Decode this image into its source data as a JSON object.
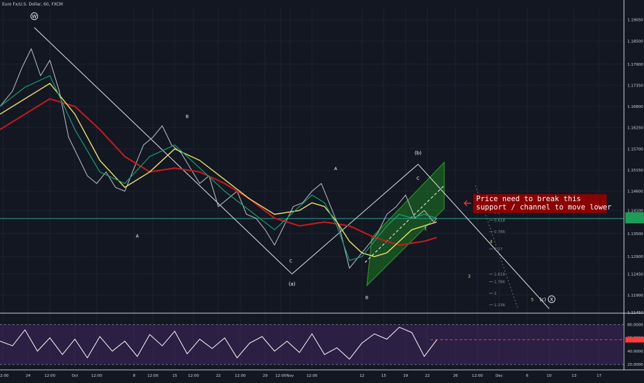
{
  "title": "Euro Fx/U.S. Dollar, 60, FXCM",
  "callout": {
    "line1": "Price need to break this",
    "line2": "support / channel to move lower"
  },
  "colors": {
    "background": "#131722",
    "grid": "#1e2230",
    "axis_text": "#d1d4dc",
    "ma_slow": "#c81b1b",
    "ma_mid": "#e8e36a",
    "ma_fast": "#1a9e6b",
    "candles": "#b2b5be",
    "channel": "#1e7a22",
    "wave_lines": "#e6e6e6",
    "support_line": "#26a69a",
    "rsi_line": "#ffffff",
    "rsi_band": "#5a2d82",
    "rsi_value": "#ff3b3b",
    "callout_bg": "#8b0000"
  },
  "chart_data": [
    {
      "type": "line",
      "title": "Euro Fx/U.S. Dollar, 60, FXCM",
      "x_ticks": [
        "12:00",
        "24",
        "12:00",
        "Oct",
        "12:00",
        "8",
        "12:00",
        "15",
        "12:00",
        "22",
        "12:00",
        "29",
        "12:00",
        "Nov",
        "12:00",
        "12",
        "15",
        "19",
        "22",
        "26",
        "12:00",
        "Dec",
        "6",
        "10",
        "13",
        "17"
      ],
      "x_tick_fraction": [
        0.005,
        0.045,
        0.08,
        0.12,
        0.155,
        0.215,
        0.245,
        0.28,
        0.31,
        0.35,
        0.385,
        0.425,
        0.45,
        0.465,
        0.5,
        0.58,
        0.615,
        0.65,
        0.685,
        0.73,
        0.765,
        0.8,
        0.845,
        0.88,
        0.92,
        0.96
      ],
      "y_ticks": [
        1.1145,
        1.119,
        1.1245,
        1.129,
        1.135,
        1.141,
        1.146,
        1.1515,
        1.157,
        1.1625,
        1.168,
        1.1735,
        1.179,
        1.185,
        1.1905
      ],
      "y_tick_labels": [
        "1.11450",
        "1.11900",
        "1.12450",
        "1.12900",
        "1.13500",
        "1.14100",
        "1.14600",
        "1.15150",
        "1.15700",
        "1.16250",
        "1.16800",
        "1.17350",
        "1.17900",
        "1.18500",
        "1.19050"
      ],
      "ylim": [
        1.1145,
        1.1935
      ],
      "current_price_label": "1.13891",
      "current_price_label2": "17:19",
      "current_price": 1.1389,
      "series": [
        {
          "role": "price",
          "x": [
            0.0,
            0.02,
            0.035,
            0.05,
            0.065,
            0.08,
            0.095,
            0.11,
            0.125,
            0.14,
            0.155,
            0.17,
            0.185,
            0.2,
            0.215,
            0.23,
            0.245,
            0.26,
            0.275,
            0.29,
            0.305,
            0.32,
            0.335,
            0.35,
            0.365,
            0.38,
            0.395,
            0.41,
            0.425,
            0.44,
            0.455,
            0.47,
            0.485,
            0.5,
            0.515,
            0.53,
            0.545,
            0.56,
            0.575,
            0.59,
            0.605,
            0.62,
            0.635,
            0.65,
            0.665,
            0.68,
            0.695,
            0.7
          ],
          "y": [
            1.168,
            1.172,
            1.178,
            1.183,
            1.176,
            1.18,
            1.172,
            1.16,
            1.155,
            1.15,
            1.148,
            1.151,
            1.147,
            1.146,
            1.152,
            1.158,
            1.16,
            1.163,
            1.158,
            1.156,
            1.152,
            1.148,
            1.15,
            1.142,
            1.144,
            1.146,
            1.14,
            1.139,
            1.136,
            1.132,
            1.137,
            1.142,
            1.143,
            1.146,
            1.148,
            1.142,
            1.136,
            1.126,
            1.129,
            1.132,
            1.135,
            1.14,
            1.142,
            1.145,
            1.139,
            1.141,
            1.138,
            1.139
          ]
        },
        {
          "role": "ma_slow",
          "x": [
            0.0,
            0.04,
            0.08,
            0.12,
            0.16,
            0.2,
            0.24,
            0.28,
            0.32,
            0.36,
            0.4,
            0.44,
            0.48,
            0.52,
            0.56,
            0.6,
            0.64,
            0.68,
            0.7
          ],
          "y": [
            1.162,
            1.166,
            1.17,
            1.168,
            1.162,
            1.155,
            1.151,
            1.152,
            1.151,
            1.148,
            1.144,
            1.139,
            1.137,
            1.138,
            1.137,
            1.134,
            1.132,
            1.133,
            1.134
          ]
        },
        {
          "role": "ma_mid",
          "x": [
            0.0,
            0.04,
            0.08,
            0.12,
            0.16,
            0.2,
            0.24,
            0.28,
            0.32,
            0.36,
            0.4,
            0.44,
            0.48,
            0.5,
            0.52,
            0.54,
            0.56,
            0.58,
            0.6,
            0.62,
            0.64,
            0.66,
            0.68,
            0.7
          ],
          "y": [
            1.166,
            1.17,
            1.174,
            1.166,
            1.154,
            1.147,
            1.151,
            1.157,
            1.154,
            1.149,
            1.144,
            1.14,
            1.141,
            1.143,
            1.142,
            1.138,
            1.133,
            1.13,
            1.129,
            1.13,
            1.133,
            1.136,
            1.137,
            1.138
          ]
        },
        {
          "role": "ma_fast",
          "x": [
            0.0,
            0.04,
            0.08,
            0.12,
            0.16,
            0.2,
            0.24,
            0.28,
            0.32,
            0.36,
            0.4,
            0.44,
            0.48,
            0.5,
            0.52,
            0.54,
            0.56,
            0.58,
            0.6,
            0.62,
            0.64,
            0.66,
            0.68,
            0.7
          ],
          "y": [
            1.168,
            1.173,
            1.176,
            1.162,
            1.151,
            1.148,
            1.155,
            1.158,
            1.152,
            1.146,
            1.141,
            1.136,
            1.142,
            1.145,
            1.143,
            1.137,
            1.128,
            1.129,
            1.133,
            1.137,
            1.14,
            1.139,
            1.14,
            1.139
          ]
        }
      ]
    },
    {
      "type": "line",
      "title": "",
      "y_ticks": [
        20,
        40,
        60,
        80
      ],
      "y_tick_labels": [
        "20.0000",
        "40.0000",
        "60.0000",
        "80.0000"
      ],
      "ylim": [
        15,
        95
      ],
      "current_value_label": "57.1732",
      "current_value": 57.17,
      "series": [
        {
          "role": "rsi",
          "x": [
            0.0,
            0.02,
            0.04,
            0.06,
            0.08,
            0.1,
            0.12,
            0.14,
            0.16,
            0.18,
            0.2,
            0.22,
            0.24,
            0.26,
            0.28,
            0.3,
            0.32,
            0.34,
            0.36,
            0.38,
            0.4,
            0.42,
            0.44,
            0.46,
            0.48,
            0.5,
            0.52,
            0.54,
            0.56,
            0.58,
            0.6,
            0.62,
            0.64,
            0.66,
            0.68,
            0.7
          ],
          "y": [
            55,
            48,
            72,
            40,
            60,
            35,
            58,
            30,
            62,
            40,
            55,
            32,
            65,
            48,
            70,
            36,
            58,
            44,
            60,
            30,
            52,
            62,
            40,
            55,
            38,
            66,
            35,
            45,
            28,
            52,
            66,
            58,
            76,
            68,
            32,
            57
          ]
        }
      ]
    }
  ],
  "wave_labels": [
    {
      "text": "W",
      "circled": true
    },
    {
      "text": "A"
    },
    {
      "text": "B"
    },
    {
      "text": "C"
    },
    {
      "text": "(a)"
    },
    {
      "text": "A"
    },
    {
      "text": "B"
    },
    {
      "text": "C"
    },
    {
      "text": "(b)"
    },
    {
      "text": "1"
    },
    {
      "text": "3"
    },
    {
      "text": "4"
    },
    {
      "text": "5"
    },
    {
      "text": "(c)"
    },
    {
      "text": "X",
      "circled": true
    }
  ],
  "fib_levels": [
    "0.5",
    "0.618",
    "0.786",
    "1.27",
    "1.618",
    "1.786",
    "2",
    "2.236"
  ]
}
